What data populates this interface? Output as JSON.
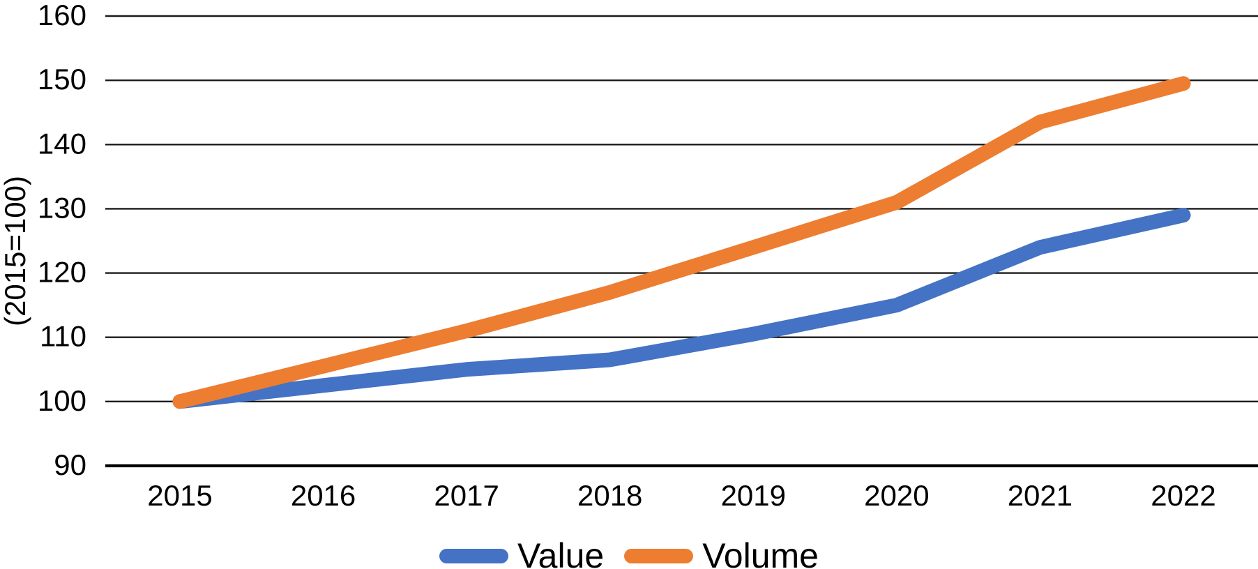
{
  "figure": {
    "background": "#ffffff",
    "text_color": "#000000",
    "gridline_color": "#1a1a1a",
    "axis_line_color": "#000000"
  },
  "chart_data": {
    "type": "line",
    "title": "",
    "xlabel": "",
    "ylabel": "(2015=100)",
    "x": [
      "2015",
      "2016",
      "2017",
      "2018",
      "2019",
      "2020",
      "2021",
      "2022"
    ],
    "series": [
      {
        "name": "Value",
        "color": "#4472C4",
        "values": [
          100,
          102.5,
          105,
          106.5,
          110.5,
          115,
          124,
          129
        ]
      },
      {
        "name": "Volume",
        "color": "#ED7D31",
        "values": [
          100,
          105.5,
          111,
          117,
          124,
          131,
          143.5,
          149.5
        ]
      }
    ],
    "ylim": [
      90,
      160
    ],
    "yticks": [
      90,
      100,
      110,
      120,
      130,
      140,
      150,
      160
    ],
    "grid": true,
    "legend_position": "bottom",
    "line_width": 21
  }
}
